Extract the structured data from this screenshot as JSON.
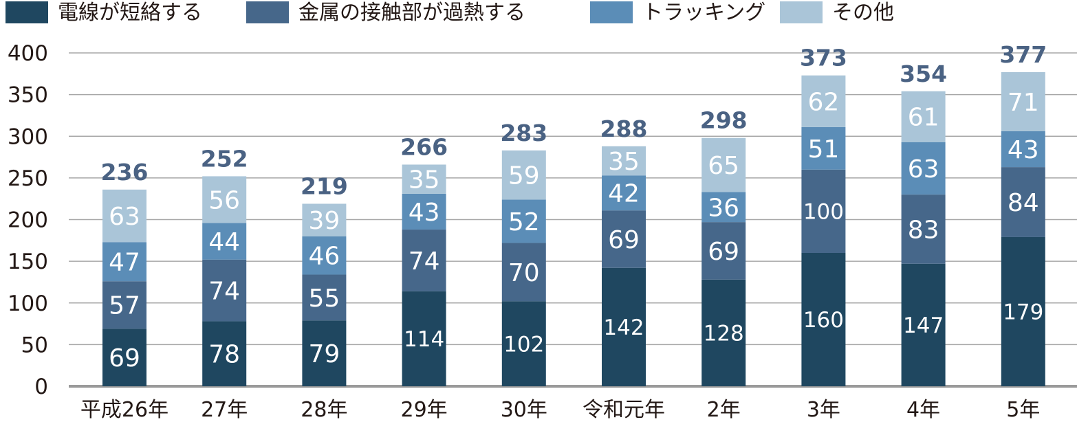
{
  "chart_data": {
    "type": "bar",
    "stacked": true,
    "categories": [
      "平成26年",
      "27年",
      "28年",
      "29年",
      "30年",
      "令和元年",
      "2年",
      "3年",
      "4年",
      "5年"
    ],
    "series": [
      {
        "name": "電線が短絡する",
        "color": "#1f4760",
        "values": [
          69,
          78,
          79,
          114,
          102,
          142,
          128,
          160,
          147,
          179
        ]
      },
      {
        "name": "金属の接触部が過熱する",
        "color": "#46678a",
        "values": [
          57,
          74,
          55,
          74,
          70,
          69,
          69,
          100,
          83,
          84
        ]
      },
      {
        "name": "トラッキング",
        "color": "#5b8db7",
        "values": [
          47,
          44,
          46,
          43,
          52,
          42,
          36,
          51,
          63,
          43
        ]
      },
      {
        "name": "その他",
        "color": "#aac5d8",
        "values": [
          63,
          56,
          39,
          35,
          59,
          35,
          65,
          62,
          61,
          71
        ]
      }
    ],
    "totals": [
      236,
      252,
      219,
      266,
      283,
      288,
      298,
      373,
      354,
      377
    ],
    "yticks": [
      0,
      50,
      100,
      150,
      200,
      250,
      300,
      350,
      400
    ],
    "ylim": [
      0,
      400
    ],
    "grid": true,
    "legend": "top"
  }
}
